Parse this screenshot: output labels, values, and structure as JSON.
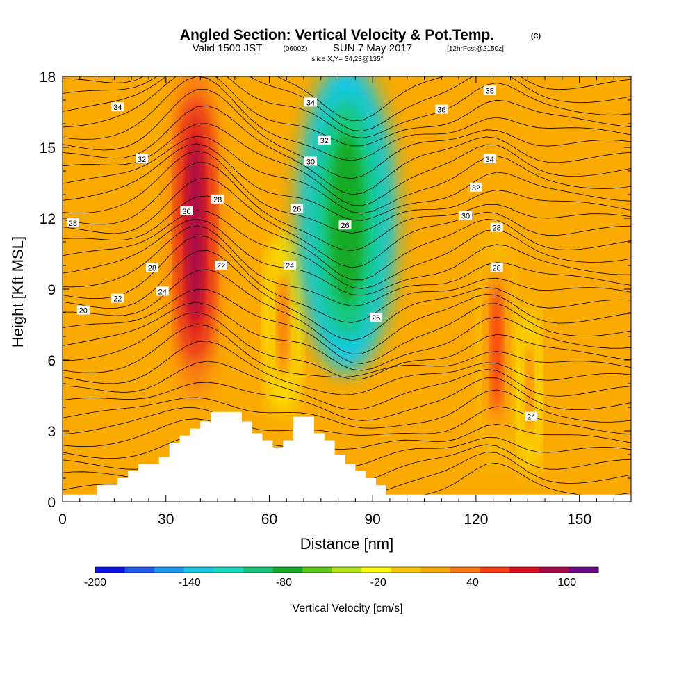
{
  "chart_data": {
    "type": "heatmap",
    "title": "Angled Section: Vertical Velocity & Pot.Temp.",
    "title_suffix": "(C)",
    "subtitle_valid": "Valid 1500 JST",
    "subtitle_z": "(0600Z)",
    "subtitle_date": "SUN 7 May 2017",
    "subtitle_fcst": "[12hrFcst@2150z]",
    "slice": "slice X,Y= 34,23@135°",
    "xlabel": "Distance [nm]",
    "ylabel": "Height [Kft MSL]",
    "xlim": [
      0,
      165
    ],
    "ylim": [
      0,
      18
    ],
    "xticks": [
      0,
      30,
      60,
      90,
      120,
      150
    ],
    "yticks": [
      0,
      3,
      6,
      9,
      12,
      15,
      18
    ],
    "colorbar": {
      "label": "Vertical Velocity [cm/s]",
      "min": -200,
      "max": 120,
      "step": 20,
      "tick_labels": [
        "-200",
        "-140",
        "-80",
        "-20",
        "40",
        "100"
      ],
      "tick_values": [
        -200,
        -140,
        -80,
        -20,
        40,
        100
      ],
      "colors": [
        "#0a14e6",
        "#1e5af0",
        "#1e96f0",
        "#14c8e6",
        "#14dcc0",
        "#14c878",
        "#14aa28",
        "#5ac814",
        "#b4e614",
        "#fafa00",
        "#fac800",
        "#faaa00",
        "#fa7814",
        "#fa3c14",
        "#dc0a1e",
        "#aa0a46",
        "#6e0a8c"
      ]
    },
    "shading": [
      {
        "name": "strong-updraft-core",
        "x": [
          32,
          45
        ],
        "y": [
          5,
          18
        ],
        "value": 100
      },
      {
        "name": "updraft-mid",
        "x": [
          60,
          68
        ],
        "y": [
          4,
          11
        ],
        "value": 40
      },
      {
        "name": "downdraft-band",
        "x": [
          70,
          95
        ],
        "y": [
          6,
          18
        ],
        "value": -80
      },
      {
        "name": "updraft-east",
        "x": [
          122,
          130
        ],
        "y": [
          2,
          11
        ],
        "value": 60
      },
      {
        "name": "updraft-east-2",
        "x": [
          133,
          138
        ],
        "y": [
          1.5,
          8
        ],
        "value": 40
      }
    ],
    "terrain": [
      [
        0,
        0.3
      ],
      [
        10,
        0.3
      ],
      [
        10,
        0.7
      ],
      [
        16,
        0.7
      ],
      [
        16,
        1.0
      ],
      [
        19,
        1.0
      ],
      [
        19,
        1.3
      ],
      [
        22,
        1.3
      ],
      [
        22,
        1.6
      ],
      [
        28,
        1.6
      ],
      [
        28,
        1.9
      ],
      [
        31,
        1.9
      ],
      [
        31,
        2.5
      ],
      [
        34,
        2.5
      ],
      [
        34,
        2.8
      ],
      [
        37,
        2.8
      ],
      [
        37,
        3.1
      ],
      [
        40,
        3.1
      ],
      [
        40,
        3.4
      ],
      [
        43,
        3.4
      ],
      [
        43,
        3.8
      ],
      [
        52,
        3.8
      ],
      [
        52,
        3.4
      ],
      [
        55,
        3.4
      ],
      [
        55,
        2.9
      ],
      [
        58,
        2.9
      ],
      [
        58,
        2.6
      ],
      [
        61,
        2.6
      ],
      [
        61,
        2.3
      ],
      [
        64,
        2.3
      ],
      [
        64,
        2.6
      ],
      [
        67,
        2.6
      ],
      [
        67,
        3.6
      ],
      [
        73,
        3.6
      ],
      [
        73,
        2.9
      ],
      [
        76,
        2.9
      ],
      [
        76,
        2.6
      ],
      [
        79,
        2.6
      ],
      [
        79,
        2.0
      ],
      [
        82,
        2.0
      ],
      [
        82,
        1.6
      ],
      [
        85,
        1.6
      ],
      [
        85,
        1.3
      ],
      [
        88,
        1.3
      ],
      [
        88,
        1.0
      ],
      [
        91,
        1.0
      ],
      [
        91,
        0.7
      ],
      [
        94,
        0.7
      ],
      [
        94,
        0.3
      ],
      [
        165,
        0.3
      ]
    ],
    "contour_labels": [
      {
        "text": "34",
        "x": 16,
        "y": 16.7
      },
      {
        "text": "32",
        "x": 23,
        "y": 14.5
      },
      {
        "text": "28",
        "x": 3,
        "y": 11.8
      },
      {
        "text": "30",
        "x": 36,
        "y": 12.3
      },
      {
        "text": "28",
        "x": 45,
        "y": 12.8
      },
      {
        "text": "28",
        "x": 26,
        "y": 9.9
      },
      {
        "text": "22",
        "x": 46,
        "y": 10.0
      },
      {
        "text": "24",
        "x": 29,
        "y": 8.9
      },
      {
        "text": "22",
        "x": 16,
        "y": 8.6
      },
      {
        "text": "20",
        "x": 6,
        "y": 8.1
      },
      {
        "text": "34",
        "x": 72,
        "y": 16.9
      },
      {
        "text": "32",
        "x": 76,
        "y": 15.3
      },
      {
        "text": "30",
        "x": 72,
        "y": 14.4
      },
      {
        "text": "26",
        "x": 68,
        "y": 12.4
      },
      {
        "text": "26",
        "x": 82,
        "y": 11.7
      },
      {
        "text": "24",
        "x": 66,
        "y": 10.0
      },
      {
        "text": "26",
        "x": 91,
        "y": 7.8
      },
      {
        "text": "36",
        "x": 110,
        "y": 16.6
      },
      {
        "text": "38",
        "x": 124,
        "y": 17.4
      },
      {
        "text": "34",
        "x": 124,
        "y": 14.5
      },
      {
        "text": "32",
        "x": 120,
        "y": 13.3
      },
      {
        "text": "30",
        "x": 117,
        "y": 12.1
      },
      {
        "text": "28",
        "x": 126,
        "y": 11.6
      },
      {
        "text": "28",
        "x": 126,
        "y": 9.9
      },
      {
        "text": "24",
        "x": 136,
        "y": 3.6
      }
    ]
  }
}
